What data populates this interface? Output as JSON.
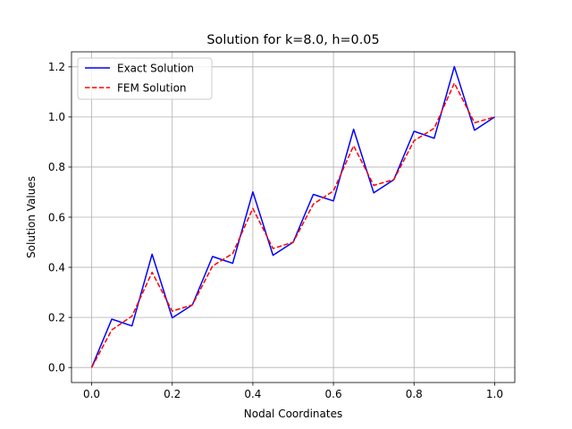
{
  "chart_data": {
    "type": "line",
    "title": "Solution for k=8.0, h=0.05",
    "xlabel": "Nodal Coordinates",
    "ylabel": "Solution Values",
    "xlim": [
      -0.05,
      1.05
    ],
    "ylim": [
      -0.06,
      1.26
    ],
    "xticks": [
      "0.0",
      "0.2",
      "0.4",
      "0.6",
      "0.8",
      "1.0"
    ],
    "xtick_values": [
      0.0,
      0.2,
      0.4,
      0.6,
      0.8,
      1.0
    ],
    "yticks": [
      "0.0",
      "0.2",
      "0.4",
      "0.6",
      "0.8",
      "1.0",
      "1.2"
    ],
    "ytick_values": [
      0.0,
      0.2,
      0.4,
      0.6,
      0.8,
      1.0,
      1.2
    ],
    "grid": true,
    "legend_position": "top-left",
    "x": [
      0.0,
      0.05,
      0.1,
      0.15,
      0.2,
      0.25,
      0.3,
      0.35,
      0.4,
      0.45,
      0.5,
      0.55,
      0.6,
      0.65,
      0.7,
      0.75,
      0.8,
      0.85,
      0.9,
      0.95,
      1.0
    ],
    "series": [
      {
        "name": "Exact Solution",
        "color": "#0000ff",
        "style": "solid",
        "values": [
          0.0,
          0.193,
          0.166,
          0.452,
          0.198,
          0.25,
          0.443,
          0.416,
          0.701,
          0.448,
          0.5,
          0.691,
          0.665,
          0.951,
          0.697,
          0.75,
          0.943,
          0.915,
          1.201,
          0.947,
          1.0
        ]
      },
      {
        "name": "FEM Solution",
        "color": "#ff0000",
        "style": "dashed",
        "values": [
          0.0,
          0.15,
          0.205,
          0.38,
          0.225,
          0.25,
          0.405,
          0.455,
          0.635,
          0.475,
          0.5,
          0.652,
          0.705,
          0.885,
          0.727,
          0.75,
          0.905,
          0.955,
          1.135,
          0.977,
          1.0
        ]
      }
    ]
  }
}
